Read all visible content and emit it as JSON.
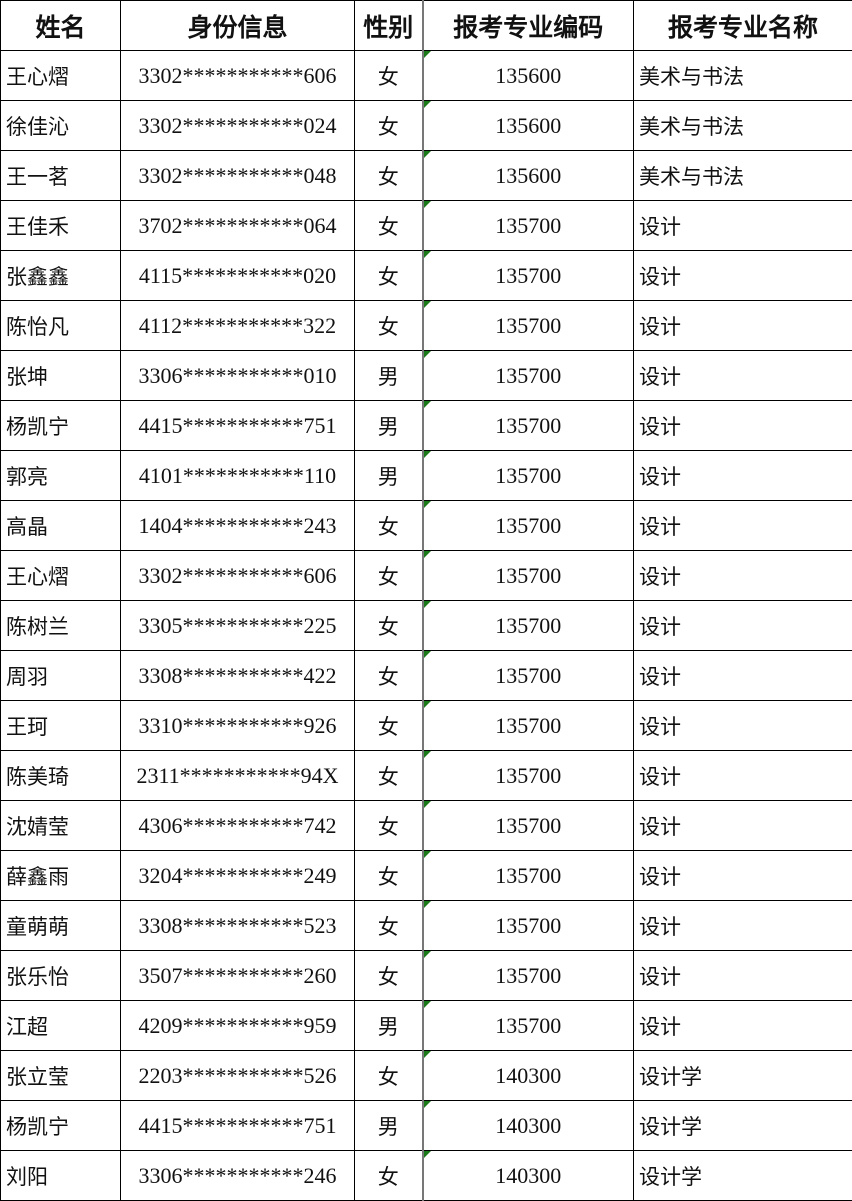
{
  "headers": [
    "姓名",
    "身份信息",
    "性别",
    "报考专业编码",
    "报考专业名称"
  ],
  "colors": {
    "comment_marker": "#1a7a1a",
    "grid": "#000000"
  },
  "rows": [
    [
      "王心熠",
      "3302***********606",
      "女",
      "135600",
      "美术与书法"
    ],
    [
      "徐佳沁",
      "3302***********024",
      "女",
      "135600",
      "美术与书法"
    ],
    [
      "王一茗",
      "3302***********048",
      "女",
      "135600",
      "美术与书法"
    ],
    [
      "王佳禾",
      "3702***********064",
      "女",
      "135700",
      "设计"
    ],
    [
      "张鑫鑫",
      "4115***********020",
      "女",
      "135700",
      "设计"
    ],
    [
      "陈怡凡",
      "4112***********322",
      "女",
      "135700",
      "设计"
    ],
    [
      "张坤",
      "3306***********010",
      "男",
      "135700",
      "设计"
    ],
    [
      "杨凯宁",
      "4415***********751",
      "男",
      "135700",
      "设计"
    ],
    [
      "郭亮",
      "4101***********110",
      "男",
      "135700",
      "设计"
    ],
    [
      "高晶",
      "1404***********243",
      "女",
      "135700",
      "设计"
    ],
    [
      "王心熠",
      "3302***********606",
      "女",
      "135700",
      "设计"
    ],
    [
      "陈树兰",
      "3305***********225",
      "女",
      "135700",
      "设计"
    ],
    [
      "周羽",
      "3308***********422",
      "女",
      "135700",
      "设计"
    ],
    [
      "王珂",
      "3310***********926",
      "女",
      "135700",
      "设计"
    ],
    [
      "陈美琦",
      "2311***********94X",
      "女",
      "135700",
      "设计"
    ],
    [
      "沈婧莹",
      "4306***********742",
      "女",
      "135700",
      "设计"
    ],
    [
      "薛鑫雨",
      "3204***********249",
      "女",
      "135700",
      "设计"
    ],
    [
      "童萌萌",
      "3308***********523",
      "女",
      "135700",
      "设计"
    ],
    [
      "张乐怡",
      "3507***********260",
      "女",
      "135700",
      "设计"
    ],
    [
      "江超",
      "4209***********959",
      "男",
      "135700",
      "设计"
    ],
    [
      "张立莹",
      "2203***********526",
      "女",
      "140300",
      "设计学"
    ],
    [
      "杨凯宁",
      "4415***********751",
      "男",
      "140300",
      "设计学"
    ],
    [
      "刘阳",
      "3306***********246",
      "女",
      "140300",
      "设计学"
    ]
  ]
}
